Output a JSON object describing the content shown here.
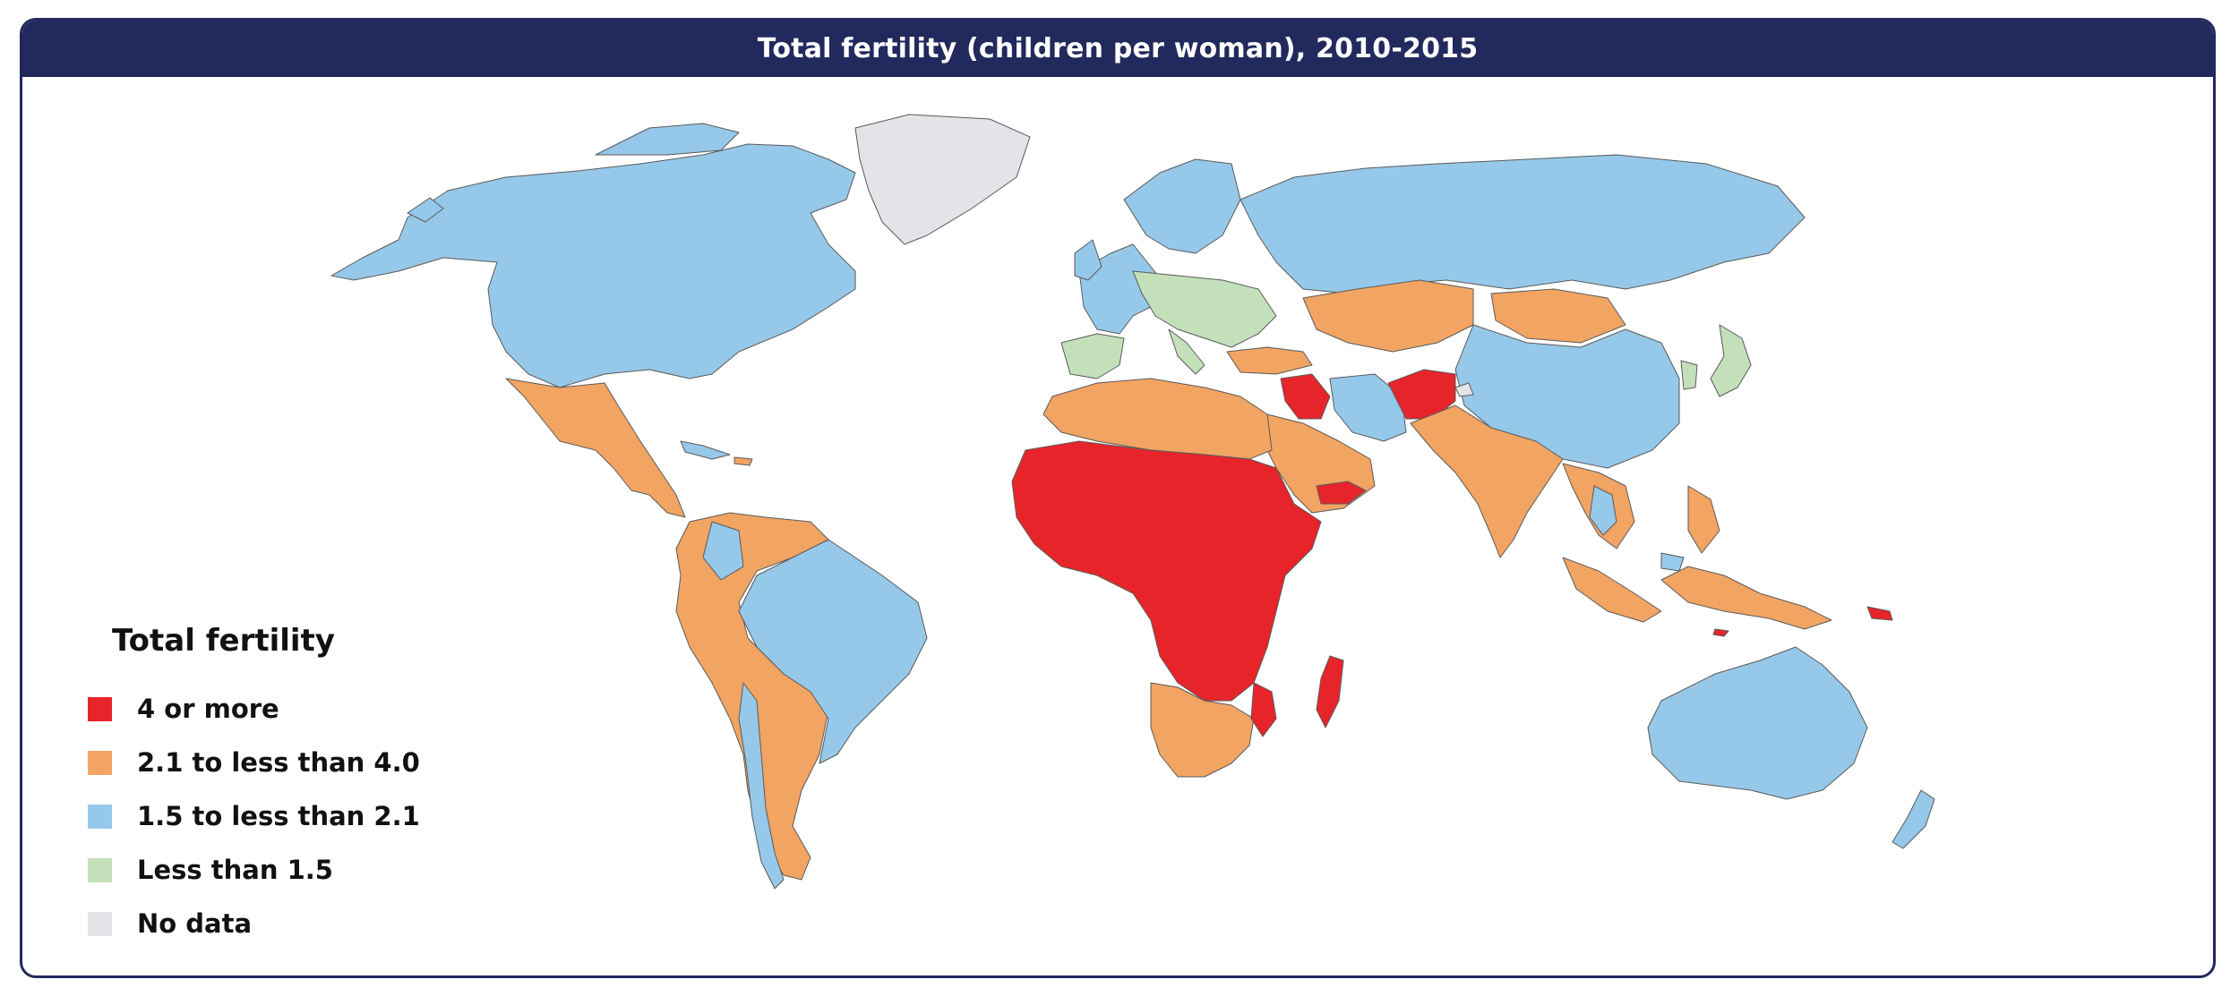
{
  "title": "Total fertility (children per woman), 2010-2015",
  "colors": {
    "frame": "#22295d",
    "high": "#e8242b",
    "medium": "#f2a463",
    "low": "#96c8e9",
    "very_low": "#c3e0bb",
    "no_data": "#e3e4e8"
  },
  "legend": {
    "title": "Total fertility",
    "items": [
      {
        "key": "high",
        "label": "4 or more",
        "color": "#e8242b"
      },
      {
        "key": "medium",
        "label": "2.1 to less than 4.0",
        "color": "#f2a463"
      },
      {
        "key": "low",
        "label": "1.5 to less than 2.1",
        "color": "#96c8e9"
      },
      {
        "key": "very_low",
        "label": "Less than 1.5",
        "color": "#c3e0bb"
      },
      {
        "key": "no_data",
        "label": "No data",
        "color": "#e3e4e8"
      }
    ]
  }
}
